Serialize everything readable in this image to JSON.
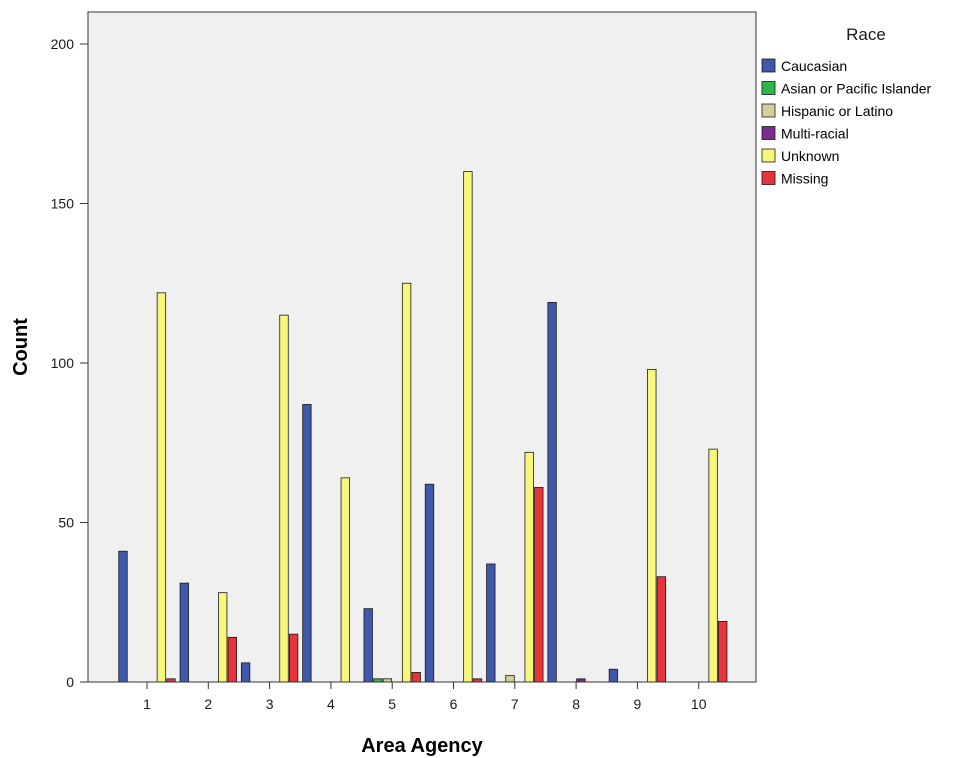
{
  "chart_data": {
    "type": "bar",
    "xlabel": "Area Agency",
    "ylabel": "Count",
    "ylim": [
      0,
      210
    ],
    "yticks": [
      0,
      50,
      100,
      150,
      200
    ],
    "categories": [
      "1",
      "2",
      "3",
      "4",
      "5",
      "6",
      "7",
      "8",
      "9",
      "10"
    ],
    "grid": false,
    "plot_background": "#f0f0f0",
    "legend": {
      "title": "Race",
      "placement": "right"
    },
    "series": [
      {
        "name": "Caucasian",
        "color": "#3e58ac",
        "values": [
          41,
          31,
          6,
          87,
          23,
          62,
          37,
          119,
          4,
          0
        ]
      },
      {
        "name": "Asian or Pacific Islander",
        "color": "#2eb848",
        "values": [
          0,
          0,
          0,
          0,
          1,
          0,
          0,
          0,
          0,
          0
        ]
      },
      {
        "name": "Hispanic or Latino",
        "color": "#d4cf98",
        "values": [
          0,
          0,
          0,
          0,
          1,
          0,
          2,
          0,
          0,
          0
        ]
      },
      {
        "name": "Multi-racial",
        "color": "#7b2c8f",
        "values": [
          0,
          0,
          0,
          0,
          0,
          0,
          0,
          1,
          0,
          0
        ]
      },
      {
        "name": "Unknown",
        "color": "#f8f77c",
        "values": [
          122,
          28,
          115,
          64,
          125,
          160,
          72,
          0,
          98,
          73
        ]
      },
      {
        "name": "Missing",
        "color": "#e8333a",
        "values": [
          1,
          14,
          15,
          0,
          3,
          1,
          61,
          0,
          33,
          19
        ]
      }
    ]
  }
}
